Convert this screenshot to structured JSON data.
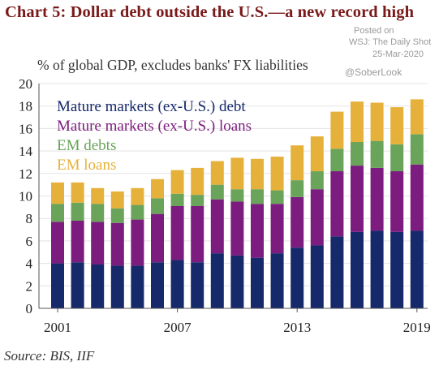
{
  "header": {
    "title": "Chart 5:  Dollar debt outside the U.S.—a new record high",
    "posted_label": "Posted on",
    "posted_source": "WSJ: The Daily Shot",
    "posted_date": "25-Mar-2020",
    "handle": "@SoberLook"
  },
  "footer": {
    "source": "Source: BIS, IIF"
  },
  "colors": {
    "mature_debt": "#15296b",
    "mature_loans": "#7b1c7e",
    "em_debts": "#6aa35a",
    "em_loans": "#e6b13a"
  },
  "chart_data": {
    "type": "bar",
    "stacked": true,
    "subtitle": "% of  global GDP, excludes banks' FX liabilities",
    "ylim": [
      0,
      20
    ],
    "yticks": [
      "0",
      "2",
      "4",
      "6",
      "8",
      "10",
      "12",
      "14",
      "16",
      "18",
      "20"
    ],
    "xtick_labels": [
      "2001",
      "2007",
      "2013",
      "2019"
    ],
    "legend_placement": "top-left",
    "categories": [
      "2001",
      "2002",
      "2003",
      "2004",
      "2005",
      "2006",
      "2007",
      "2008",
      "2009",
      "2010",
      "2011",
      "2012",
      "2013",
      "2014",
      "2015",
      "2016",
      "2017",
      "2018",
      "2019"
    ],
    "series": [
      {
        "name": "Mature markets (ex-U.S.) debt",
        "color": "#15296b",
        "values": [
          4.0,
          4.1,
          3.9,
          3.8,
          3.8,
          4.1,
          4.3,
          4.1,
          4.9,
          4.7,
          4.5,
          4.9,
          5.4,
          5.6,
          6.4,
          6.8,
          6.9,
          6.8,
          6.9
        ]
      },
      {
        "name": "Mature markets (ex-U.S.) loans",
        "color": "#7b1c7e",
        "values": [
          3.7,
          3.7,
          3.8,
          3.8,
          4.1,
          4.3,
          4.8,
          5.0,
          4.8,
          4.8,
          4.8,
          4.4,
          4.5,
          5.0,
          5.8,
          5.9,
          5.6,
          5.4,
          5.9
        ]
      },
      {
        "name": "EM debts",
        "color": "#6aa35a",
        "values": [
          1.6,
          1.6,
          1.6,
          1.3,
          1.3,
          1.4,
          1.1,
          1.0,
          1.3,
          1.1,
          1.3,
          1.2,
          1.5,
          1.6,
          2.0,
          2.1,
          2.4,
          2.4,
          2.7
        ]
      },
      {
        "name": "EM loans",
        "color": "#e6b13a",
        "values": [
          1.9,
          1.8,
          1.4,
          1.5,
          1.5,
          1.7,
          2.1,
          2.4,
          2.1,
          2.8,
          2.7,
          3.0,
          3.1,
          3.1,
          3.3,
          3.6,
          3.4,
          3.3,
          3.1
        ]
      }
    ]
  }
}
